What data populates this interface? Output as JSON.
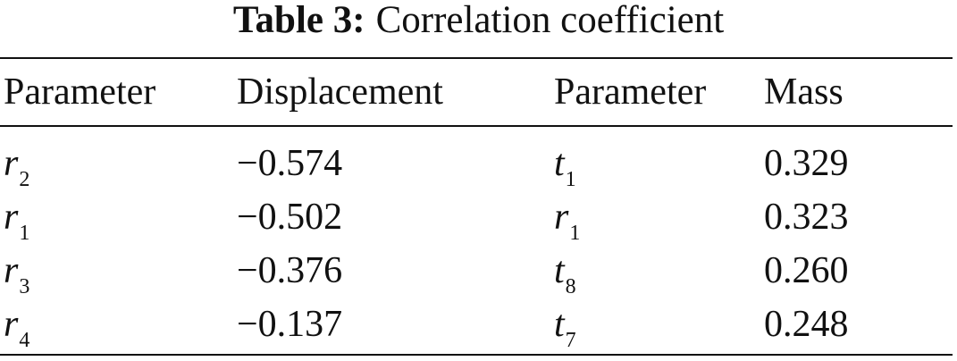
{
  "title": {
    "label": "Table 3:",
    "text": "Correlation coefficient"
  },
  "table": {
    "header": [
      "Parameter",
      "Displacement",
      "Parameter",
      "Mass"
    ],
    "rows": [
      [
        {
          "symbol": "r",
          "subscript": "2"
        },
        "−0.574",
        {
          "symbol": "t",
          "subscript": "1"
        },
        "0.329"
      ],
      [
        {
          "symbol": "r",
          "subscript": "1"
        },
        "−0.502",
        {
          "symbol": "r",
          "subscript": "1"
        },
        "0.323"
      ],
      [
        {
          "symbol": "r",
          "subscript": "3"
        },
        "−0.376",
        {
          "symbol": "t",
          "subscript": "8"
        },
        "0.260"
      ],
      [
        {
          "symbol": "r",
          "subscript": "4"
        },
        "−0.137",
        {
          "symbol": "t",
          "subscript": "7"
        },
        "0.248"
      ]
    ]
  }
}
